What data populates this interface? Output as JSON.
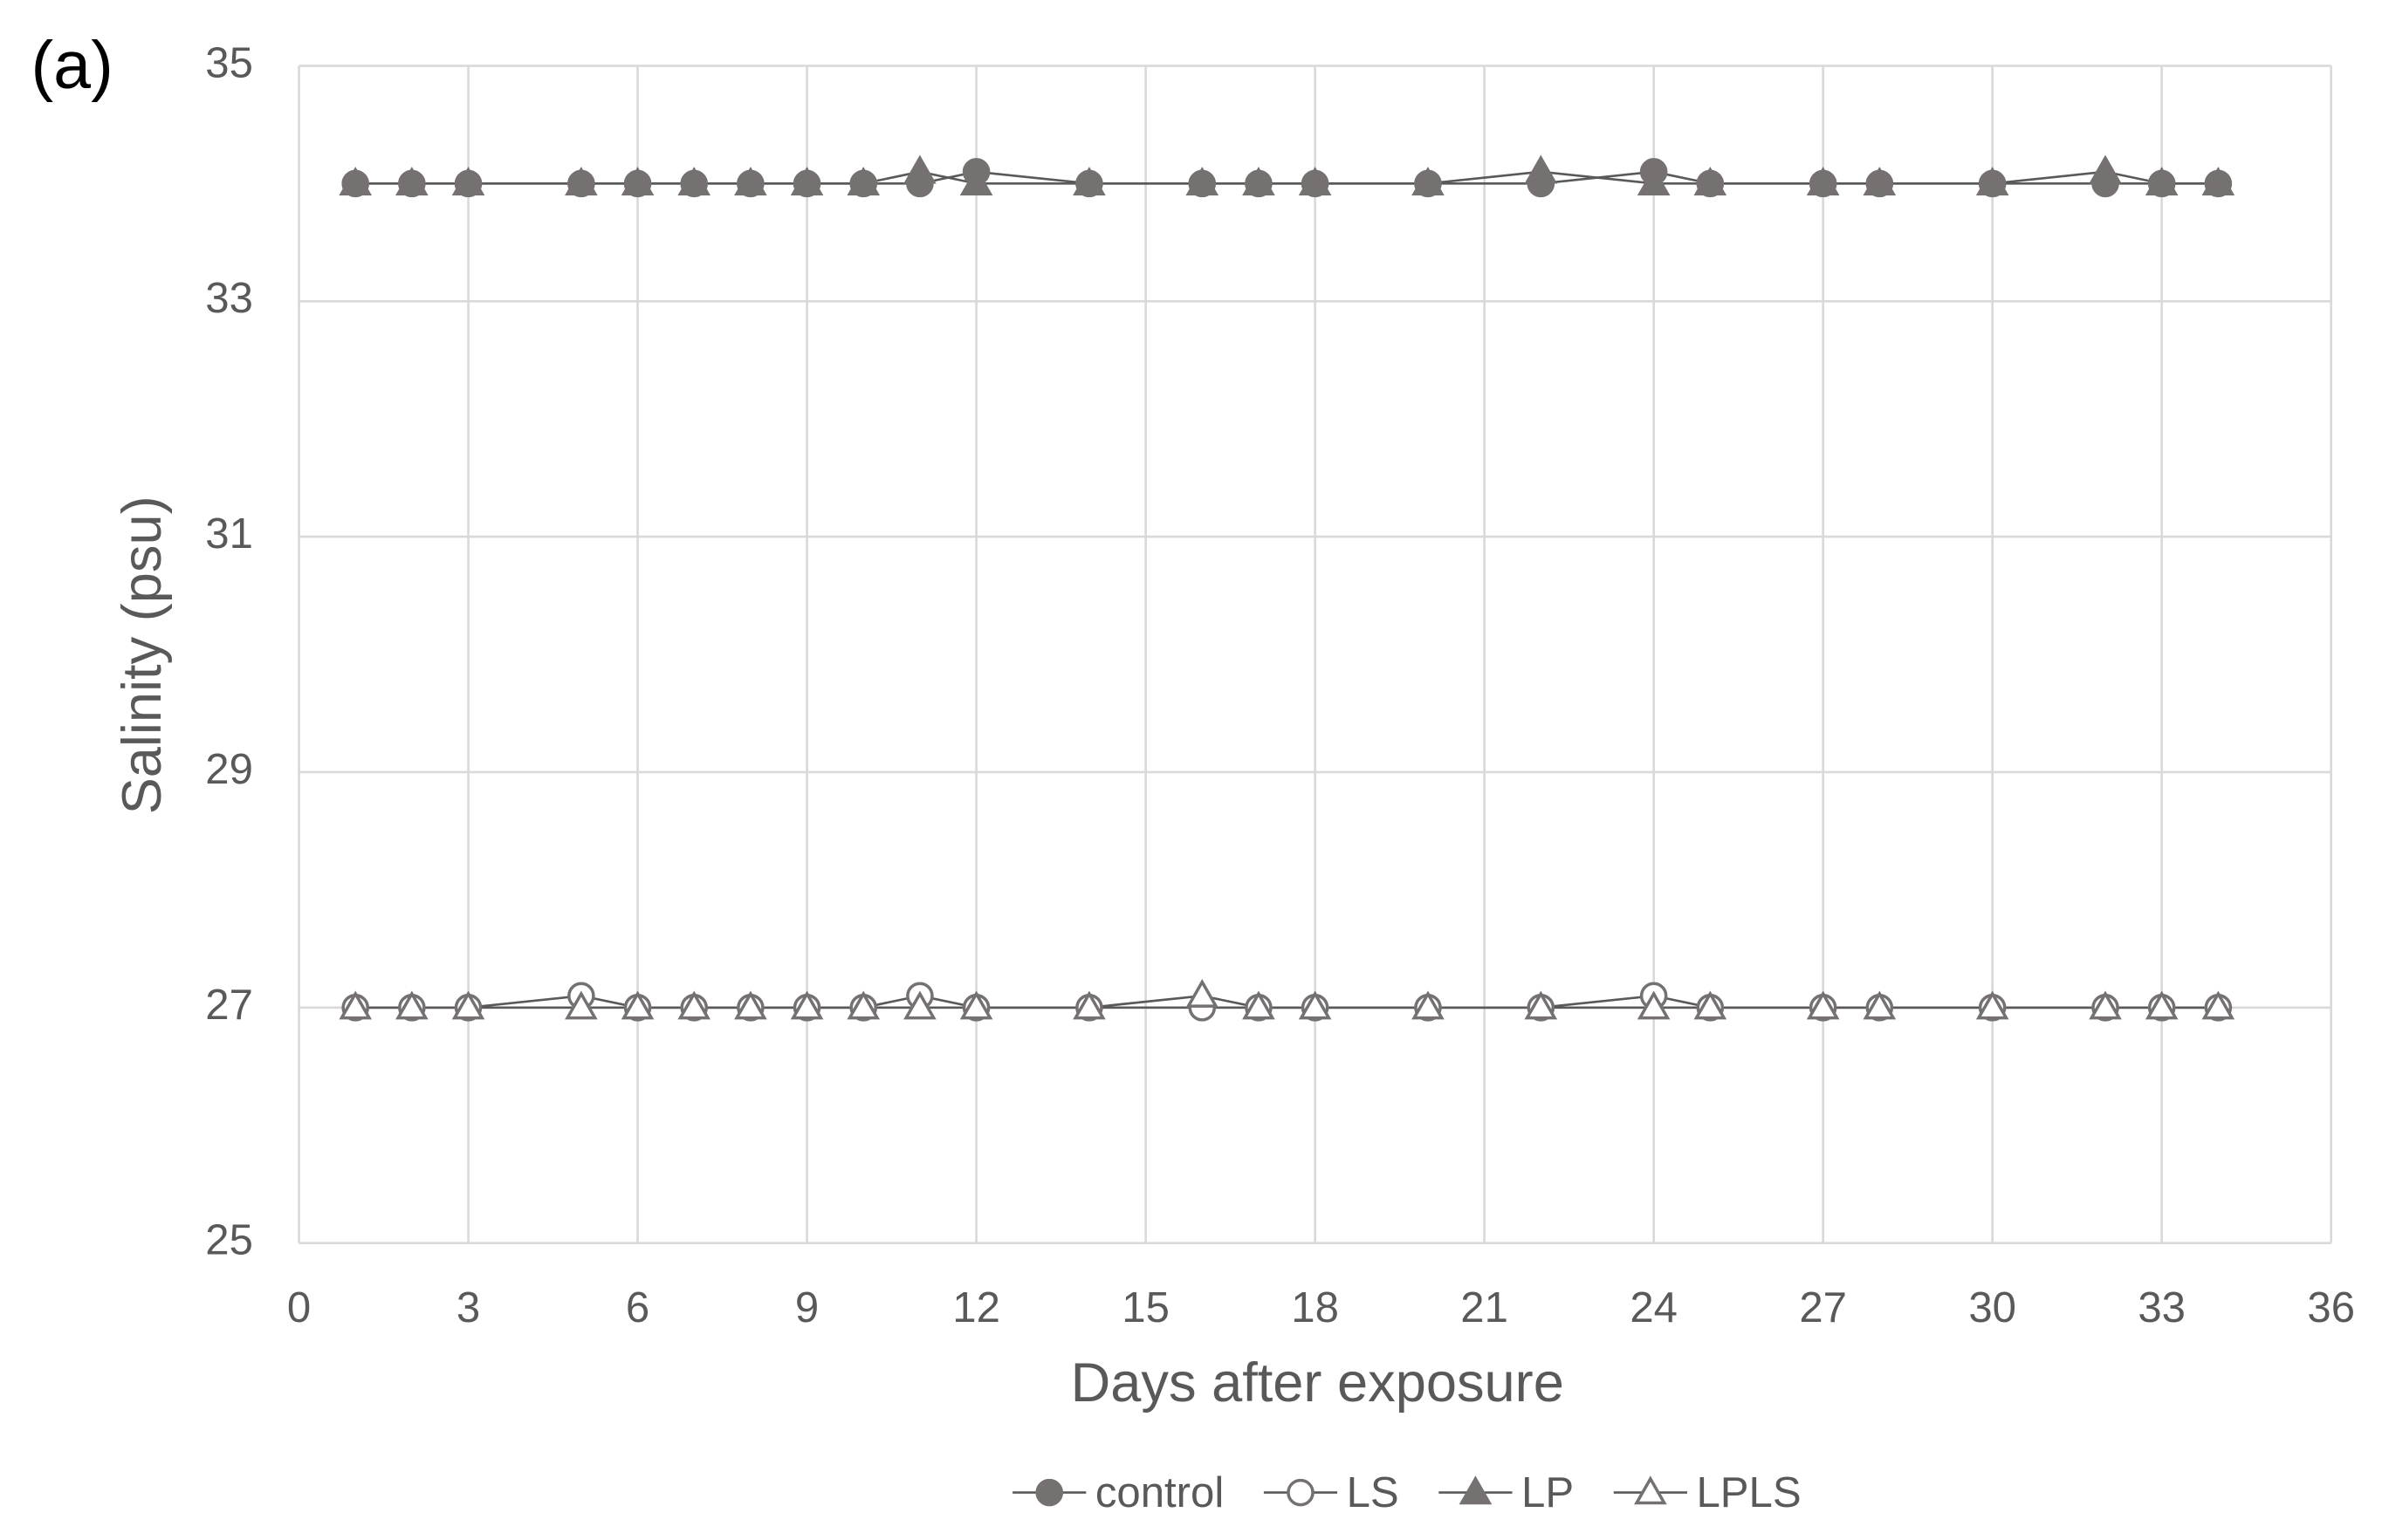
{
  "chart_data": {
    "type": "line",
    "annotation": "(a)",
    "xlabel": "Days after exposure",
    "ylabel": "Salinity (psu)",
    "x": [
      1,
      2,
      3,
      5,
      6,
      7,
      8,
      9,
      10,
      11,
      12,
      14,
      16,
      17,
      18,
      20,
      22,
      24,
      25,
      27,
      28,
      30,
      32,
      33,
      34
    ],
    "series": [
      {
        "name": "control",
        "color": "#767171",
        "marker": "circle",
        "filled": true,
        "values": [
          34,
          34,
          34,
          34,
          34,
          34,
          34,
          34,
          34,
          34,
          34.1,
          34,
          34,
          34,
          34,
          34,
          34,
          34.1,
          34,
          34,
          34,
          34,
          34,
          34,
          34
        ]
      },
      {
        "name": "LS",
        "color": "#767171",
        "marker": "circle",
        "filled": false,
        "values": [
          27,
          27,
          27,
          27.1,
          27,
          27,
          27,
          27,
          27,
          27.1,
          27,
          27,
          27,
          27,
          27,
          27,
          27,
          27.1,
          27,
          27,
          27,
          27,
          27,
          27,
          27
        ]
      },
      {
        "name": "LP",
        "color": "#767171",
        "marker": "triangle",
        "filled": true,
        "values": [
          34,
          34,
          34,
          34,
          34,
          34,
          34,
          34,
          34,
          34.1,
          34,
          34,
          34,
          34,
          34,
          34,
          34.1,
          34,
          34,
          34,
          34,
          34,
          34.1,
          34,
          34
        ]
      },
      {
        "name": "LPLS",
        "color": "#767171",
        "marker": "triangle",
        "filled": false,
        "values": [
          27,
          27,
          27,
          27,
          27,
          27,
          27,
          27,
          27,
          27,
          27,
          27,
          27.1,
          27,
          27,
          27,
          27,
          27,
          27,
          27,
          27,
          27,
          27,
          27,
          27
        ]
      }
    ],
    "xlim": [
      0,
      36
    ],
    "xticks": [
      0,
      3,
      6,
      9,
      12,
      15,
      18,
      21,
      24,
      27,
      30,
      33,
      36
    ],
    "ylim": [
      25,
      35
    ],
    "yticks": [
      25,
      27,
      29,
      31,
      33,
      35
    ],
    "grid": true,
    "legend": "bottom",
    "line_color": "#595959"
  }
}
